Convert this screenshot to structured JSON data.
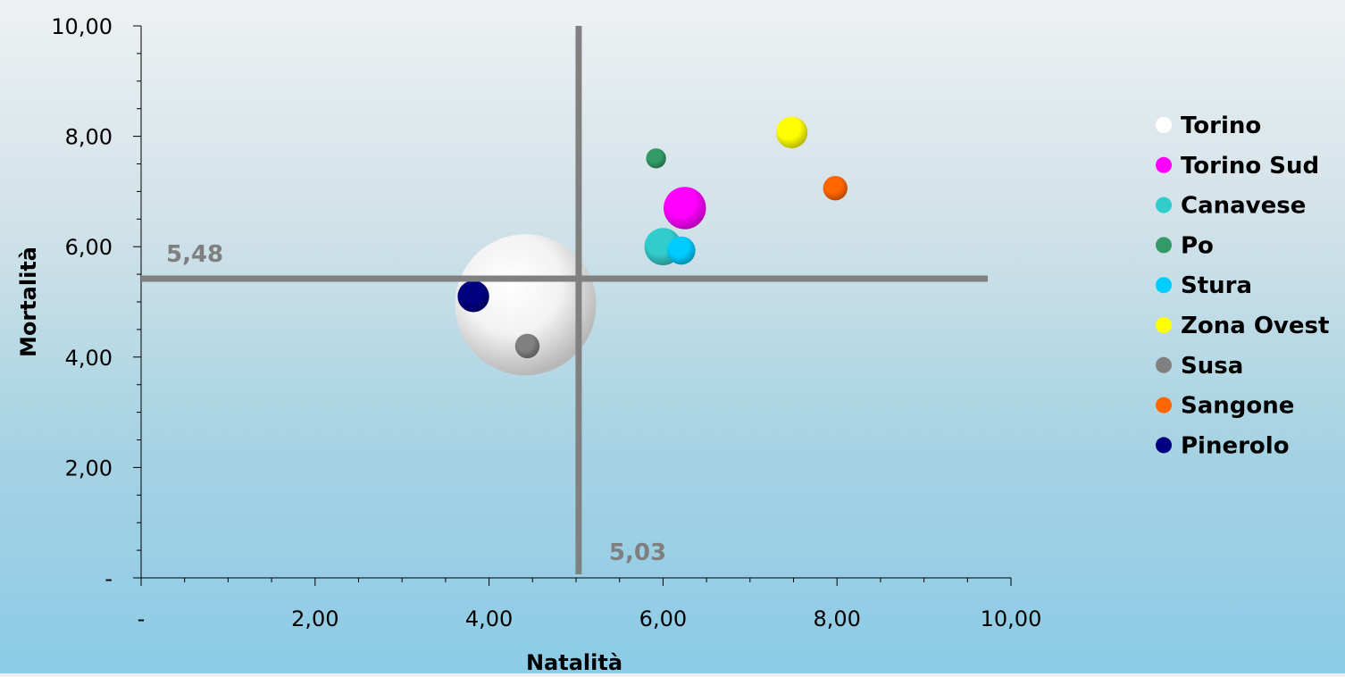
{
  "chart_data": {
    "type": "bubble",
    "xlabel": "Natalità",
    "ylabel": "Mortalità",
    "xlim": [
      0,
      10
    ],
    "ylim": [
      0,
      10
    ],
    "x_ticks": [
      "-",
      "2,00",
      "4,00",
      "6,00",
      "8,00",
      "10,00"
    ],
    "y_ticks": [
      "-",
      "2,00",
      "4,00",
      "6,00",
      "8,00",
      "10,00"
    ],
    "reference_lines": {
      "x": {
        "value": 5.03,
        "label": "5,03"
      },
      "y": {
        "value": 5.48,
        "label": "5,48"
      }
    },
    "legend_position": "right",
    "grid": false,
    "series": [
      {
        "name": "Torino",
        "x": 4.42,
        "y": 4.95,
        "size": 100,
        "color": "#ffffff"
      },
      {
        "name": "Torino Sud",
        "x": 6.25,
        "y": 6.7,
        "size": 9,
        "color": "#ff00ff"
      },
      {
        "name": "Canavese",
        "x": 6.0,
        "y": 6.0,
        "size": 7,
        "color": "#33cccc"
      },
      {
        "name": "Po",
        "x": 5.92,
        "y": 7.6,
        "size": 2,
        "color": "#339966"
      },
      {
        "name": "Stura",
        "x": 6.21,
        "y": 5.93,
        "size": 4,
        "color": "#00ccff"
      },
      {
        "name": "Zona Ovest",
        "x": 7.48,
        "y": 8.07,
        "size": 5,
        "color": "#ffff00"
      },
      {
        "name": "Susa",
        "x": 4.44,
        "y": 4.2,
        "size": 3,
        "color": "#808080"
      },
      {
        "name": "Sangone",
        "x": 7.98,
        "y": 7.06,
        "size": 3,
        "color": "#ff6600"
      },
      {
        "name": "Pinerolo",
        "x": 3.82,
        "y": 5.1,
        "size": 5,
        "color": "#000080"
      }
    ]
  }
}
